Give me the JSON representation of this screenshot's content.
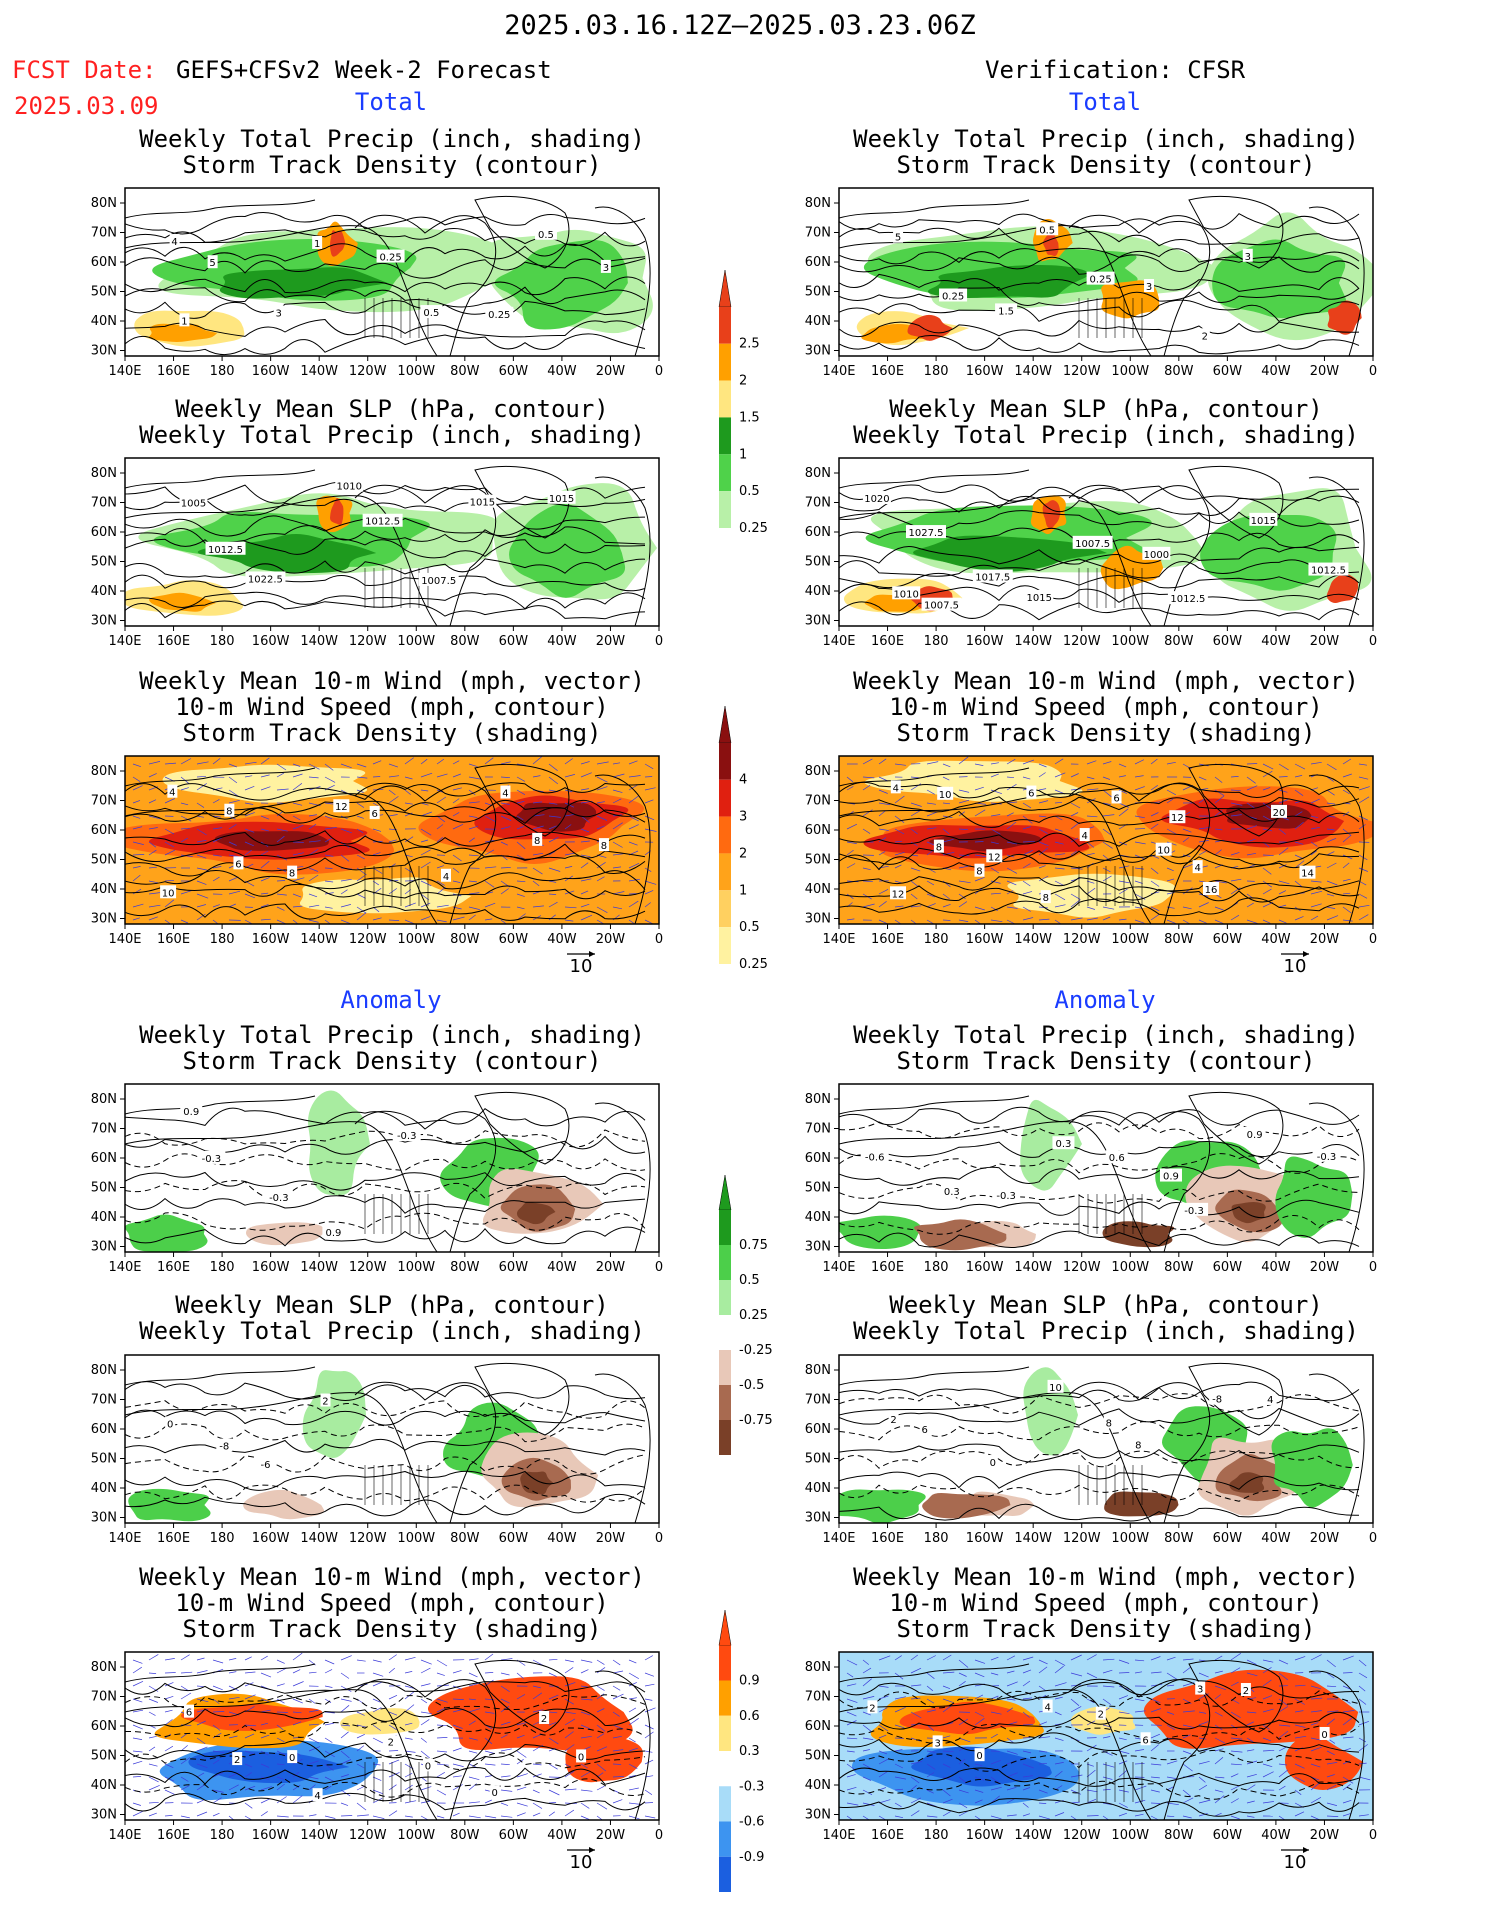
{
  "header": {
    "date_range": "2025.03.16.12Z–2025.03.23.06Z",
    "fcst_label": "FCST Date:",
    "fcst_model": "GEFS+CFSv2 Week-2 Forecast",
    "fcst_date": "2025.03.09",
    "verification": "Verification: CFSR"
  },
  "sections": {
    "total": "Total",
    "anomaly": "Anomaly"
  },
  "axes": {
    "lat_labels": [
      "80N",
      "70N",
      "60N",
      "50N",
      "40N",
      "30N"
    ],
    "lon_labels": [
      "140E",
      "160E",
      "180",
      "160W",
      "140W",
      "120W",
      "100W",
      "80W",
      "60W",
      "40W",
      "20W",
      "0"
    ],
    "vector_ref": "10"
  },
  "colors": {
    "precip_total": [
      "#b8f0a8",
      "#4fd24a",
      "#1e9a1e",
      "#ffe680",
      "#ffa000",
      "#e8401a"
    ],
    "storm_total": [
      "#fff2a0",
      "#ffd060",
      "#ffa31a",
      "#ff6a10",
      "#e02010",
      "#8a1010"
    ],
    "precip_anom": [
      "#7a4028",
      "#a86a50",
      "#e8c8b8",
      "#ffffff",
      "#a8eca0",
      "#4ccf4a",
      "#1e9a1e"
    ],
    "storm_anom": [
      "#1b5fe0",
      "#3d94f0",
      "#a8dcf8",
      "#ffffff",
      "#ffe680",
      "#ffa000",
      "#ff4a10"
    ]
  },
  "legends": [
    {
      "kind": "precip_total",
      "labels": [
        "0.25",
        "0.5",
        "1",
        "1.5",
        "2",
        "2.5"
      ]
    },
    {
      "kind": "storm_total",
      "labels": [
        "0.25",
        "0.5",
        "1",
        "2",
        "3",
        "4"
      ]
    },
    {
      "kind": "precip_anom",
      "labels": [
        "-0.75",
        "-0.5",
        "-0.25",
        "0.25",
        "0.5",
        "0.75"
      ]
    },
    {
      "kind": "storm_anom",
      "labels": [
        "-0.9",
        "-0.6",
        "-0.3",
        "0.3",
        "0.6",
        "0.9"
      ]
    }
  ],
  "panels": [
    {
      "title": "Weekly Total Precip (inch, shading)\nStorm Track Density (contour)",
      "kind": "precip",
      "variant": "fcst",
      "labels": [
        "4",
        "5",
        "3",
        "1",
        "0.25",
        "0.5",
        "0.25",
        "0.5",
        "3",
        "1"
      ]
    },
    {
      "title": "Weekly Total Precip (inch, shading)\nStorm Track Density (contour)",
      "kind": "precip",
      "variant": "obs",
      "labels": [
        "5",
        "0.25",
        "1.5",
        "0.5",
        "0.25",
        "3",
        "2",
        "3"
      ]
    },
    {
      "title": "Weekly Mean SLP (hPa, contour)\nWeekly Total Precip (inch, shading)",
      "kind": "precip",
      "variant": "fcst",
      "labels": [
        "1005",
        "1012.5",
        "1022.5",
        "1010",
        "1012.5",
        "1007.5",
        "1015",
        "1015"
      ]
    },
    {
      "title": "Weekly Mean SLP (hPa, contour)\nWeekly Total Precip (inch, shading)",
      "kind": "precip",
      "variant": "obs",
      "labels": [
        "1020",
        "1027.5",
        "1017.5",
        "1015",
        "1007.5",
        "1000",
        "1012.5",
        "1015",
        "1012.5",
        "1010",
        "1007.5"
      ]
    },
    {
      "title": "Weekly Mean 10-m Wind (mph, vector)\n10-m Wind Speed (mph, contour)\nStorm Track Density (shading)",
      "kind": "storm",
      "variant": "fcst",
      "labels": [
        "4",
        "6",
        "8",
        "12",
        "6",
        "4",
        "4",
        "8",
        "8",
        "10",
        "8"
      ]
    },
    {
      "title": "Weekly Mean 10-m Wind (mph, vector)\n10-m Wind Speed (mph, contour)\nStorm Track Density (shading)",
      "kind": "storm",
      "variant": "obs",
      "labels": [
        "4",
        "8",
        "8",
        "6",
        "4",
        "10",
        "16",
        "20",
        "14",
        "12",
        "10",
        "12",
        "8",
        "6",
        "12",
        "4"
      ]
    },
    {
      "title": "Weekly Total Precip (inch, shading)\nStorm Track Density (contour)",
      "kind": "panom",
      "variant": "fcst",
      "labels": [
        "0.9",
        "-0.3",
        "-0.3",
        "0.9",
        "-0.3"
      ]
    },
    {
      "title": "Weekly Total Precip (inch, shading)\nStorm Track Density (contour)",
      "kind": "panom",
      "variant": "obs",
      "labels": [
        "-0.6",
        "0.3",
        "-0.3",
        "0.3",
        "0.6",
        "0.9",
        "-0.3",
        "0.9",
        "-0.3"
      ]
    },
    {
      "title": "Weekly Mean SLP (hPa, contour)\nWeekly Total Precip (inch, shading)",
      "kind": "panom",
      "variant": "fcst",
      "labels": [
        "0",
        "-8",
        "-6",
        "2"
      ]
    },
    {
      "title": "Weekly Mean SLP (hPa, contour)\nWeekly Total Precip (inch, shading)",
      "kind": "panom",
      "variant": "obs",
      "labels": [
        "2",
        "6",
        "0",
        "10",
        "8",
        "8",
        "-8",
        "4"
      ]
    },
    {
      "title": "Weekly Mean 10-m Wind (mph, vector)\n10-m Wind Speed (mph, contour)\nStorm Track Density (shading)",
      "kind": "sanom",
      "variant": "fcst",
      "labels": [
        "6",
        "2",
        "0",
        "4",
        "2",
        "0",
        "0",
        "2",
        "0"
      ]
    },
    {
      "title": "Weekly Mean 10-m Wind (mph, vector)\n10-m Wind Speed (mph, contour)\nStorm Track Density (shading)",
      "kind": "sanom",
      "variant": "obs",
      "labels": [
        "2",
        "3",
        "0",
        "4",
        "2",
        "6",
        "3",
        "2",
        "0"
      ]
    }
  ]
}
